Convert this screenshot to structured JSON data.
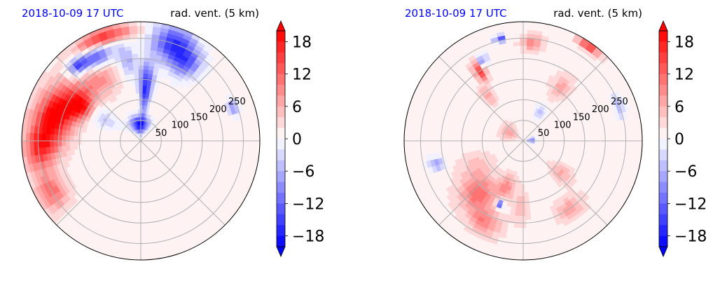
{
  "chart_data": [
    {
      "type": "heatmap",
      "projection": "polar",
      "title_left": "2018-10-09 17 UTC",
      "title_right": "rad. vent. (5 km)",
      "radial_ticks": [
        "50",
        "100",
        "150",
        "200",
        "250"
      ],
      "radial_tick_values": [
        50,
        100,
        150,
        200,
        250
      ],
      "rmax": 290,
      "angular_gridlines_deg": [
        0,
        45,
        90,
        135,
        180,
        225,
        270,
        315
      ],
      "colorbar": {
        "ticks": [
          "18",
          "12",
          "6",
          "0",
          "−6",
          "−12",
          "−18"
        ],
        "tick_values": [
          18,
          12,
          6,
          0,
          -6,
          -12,
          -18
        ],
        "vmin": -20,
        "vmax": 20,
        "levels": 20,
        "extend": "both",
        "cmap": "bwr"
      },
      "features": [
        {
          "v": 20,
          "r": 220,
          "th": 165,
          "rr": 45,
          "tr": 20
        },
        {
          "v": 18,
          "r": 170,
          "th": 150,
          "rr": 35,
          "tr": 12
        },
        {
          "v": 12,
          "r": 250,
          "th": 185,
          "rr": 35,
          "tr": 12
        },
        {
          "v": 10,
          "r": 250,
          "th": 210,
          "rr": 35,
          "tr": 10
        },
        {
          "v": 8,
          "r": 180,
          "th": 125,
          "rr": 40,
          "tr": 14
        },
        {
          "v": 15,
          "r": 270,
          "th": 110,
          "rr": 20,
          "tr": 15
        },
        {
          "v": -20,
          "r": 40,
          "th": 95,
          "rr": 22,
          "tr": 30
        },
        {
          "v": -18,
          "r": 130,
          "th": 85,
          "rr": 60,
          "tr": 7
        },
        {
          "v": -16,
          "r": 250,
          "th": 72,
          "rr": 45,
          "tr": 12
        },
        {
          "v": -12,
          "r": 220,
          "th": 60,
          "rr": 40,
          "tr": 10
        },
        {
          "v": -14,
          "r": 230,
          "th": 118,
          "rr": 25,
          "tr": 10
        },
        {
          "v": -16,
          "r": 240,
          "th": 130,
          "rr": 20,
          "tr": 6
        },
        {
          "v": -8,
          "r": 200,
          "th": 100,
          "rr": 40,
          "tr": 6
        },
        {
          "v": -10,
          "r": 240,
          "th": 20,
          "rr": 15,
          "tr": 5
        },
        {
          "v": -6,
          "r": 110,
          "th": 150,
          "rr": 40,
          "tr": 12
        }
      ]
    },
    {
      "type": "heatmap",
      "projection": "polar",
      "title_left": "2018-10-09 17 UTC",
      "title_right": "rad. vent. (5 km)",
      "radial_ticks": [
        "50",
        "100",
        "150",
        "200",
        "250"
      ],
      "radial_tick_values": [
        50,
        100,
        150,
        200,
        250
      ],
      "rmax": 290,
      "angular_gridlines_deg": [
        0,
        45,
        90,
        135,
        180,
        225,
        270,
        315
      ],
      "colorbar": {
        "ticks": [
          "18",
          "12",
          "6",
          "0",
          "−6",
          "−12",
          "−18"
        ],
        "tick_values": [
          18,
          12,
          6,
          0,
          -6,
          -12,
          -18
        ],
        "vmin": -20,
        "vmax": 20,
        "levels": 20,
        "extend": "both",
        "cmap": "bwr"
      },
      "features": [
        {
          "v": 10,
          "r": 170,
          "th": 230,
          "rr": 45,
          "tr": 14
        },
        {
          "v": 8,
          "r": 220,
          "th": 245,
          "rr": 30,
          "tr": 10
        },
        {
          "v": 8,
          "r": 120,
          "th": 250,
          "rr": 30,
          "tr": 10
        },
        {
          "v": -18,
          "r": 165,
          "th": 250,
          "rr": 10,
          "tr": 3
        },
        {
          "v": 14,
          "r": 200,
          "th": 122,
          "rr": 25,
          "tr": 4
        },
        {
          "v": -12,
          "r": 220,
          "th": 117,
          "rr": 15,
          "tr": 3
        },
        {
          "v": -16,
          "r": 255,
          "th": 103,
          "rr": 10,
          "tr": 3
        },
        {
          "v": 8,
          "r": 240,
          "th": 85,
          "rr": 20,
          "tr": 6
        },
        {
          "v": 6,
          "r": 140,
          "th": 128,
          "rr": 25,
          "tr": 6
        },
        {
          "v": -6,
          "r": 80,
          "th": 60,
          "rr": 20,
          "tr": 10
        },
        {
          "v": -12,
          "r": 20,
          "th": 5,
          "rr": 10,
          "tr": 20
        },
        {
          "v": 6,
          "r": 40,
          "th": 150,
          "rr": 20,
          "tr": 25
        },
        {
          "v": -8,
          "r": 220,
          "th": 195,
          "rr": 20,
          "tr": 5
        },
        {
          "v": -6,
          "r": 250,
          "th": 20,
          "rr": 15,
          "tr": 8
        },
        {
          "v": 6,
          "r": 160,
          "th": 55,
          "rr": 30,
          "tr": 8
        },
        {
          "v": 16,
          "r": 280,
          "th": 55,
          "rr": 10,
          "tr": 6
        },
        {
          "v": 4,
          "r": 130,
          "th": 210,
          "rr": 40,
          "tr": 15
        },
        {
          "v": 6,
          "r": 200,
          "th": 305,
          "rr": 25,
          "tr": 10
        },
        {
          "v": 5,
          "r": 120,
          "th": 320,
          "rr": 30,
          "tr": 10
        },
        {
          "v": 4,
          "r": 160,
          "th": 268,
          "rr": 40,
          "tr": 6
        }
      ]
    }
  ]
}
